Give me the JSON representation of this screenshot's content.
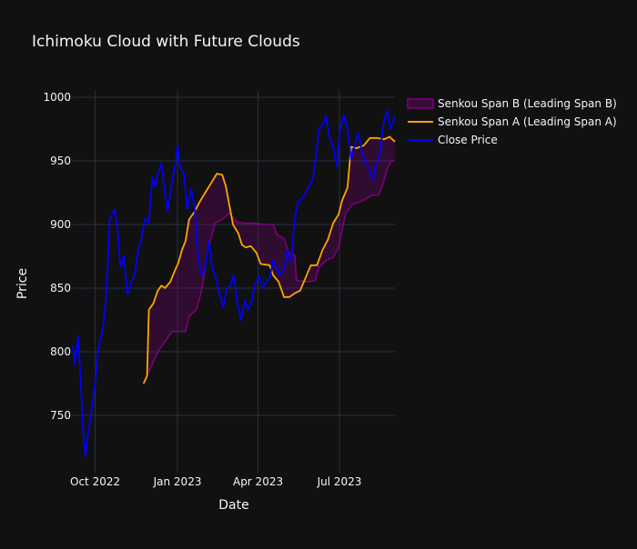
{
  "chart_data": {
    "type": "line",
    "title": "Ichimoku Cloud with Future Clouds",
    "xlabel": "Date",
    "ylabel": "Price",
    "xlim": [
      "2022-09-06",
      "2023-09-01"
    ],
    "ylim": [
      705,
      1005
    ],
    "x_ticks": [
      {
        "label": "Oct 2022",
        "date": "2022-10-01"
      },
      {
        "label": "Jan 2023",
        "date": "2023-01-01"
      },
      {
        "label": "Apr 2023",
        "date": "2023-04-01"
      },
      {
        "label": "Jul 2023",
        "date": "2023-07-01"
      }
    ],
    "y_ticks": [
      750,
      800,
      850,
      900,
      950,
      1000
    ],
    "grid": true,
    "legend": "top-right",
    "series": [
      {
        "name": "Senkou Span B (Leading Span B)",
        "color": "#800080",
        "fill": "tonexty",
        "points": [
          [
            "2022-11-24",
            775
          ],
          [
            "2022-12-10",
            800
          ],
          [
            "2022-12-26",
            816
          ],
          [
            "2023-01-10",
            816
          ],
          [
            "2023-01-14",
            828
          ],
          [
            "2023-01-22",
            833
          ],
          [
            "2023-01-28",
            848
          ],
          [
            "2023-02-04",
            880
          ],
          [
            "2023-02-12",
            901
          ],
          [
            "2023-02-22",
            905
          ],
          [
            "2023-02-28",
            909
          ],
          [
            "2023-03-08",
            902
          ],
          [
            "2023-03-18",
            901
          ],
          [
            "2023-03-28",
            901
          ],
          [
            "2023-04-08",
            900
          ],
          [
            "2023-04-18",
            900
          ],
          [
            "2023-04-22",
            892
          ],
          [
            "2023-04-30",
            889
          ],
          [
            "2023-05-06",
            877
          ],
          [
            "2023-05-12",
            876
          ],
          [
            "2023-05-14",
            856
          ],
          [
            "2023-05-26",
            855
          ],
          [
            "2023-06-04",
            856
          ],
          [
            "2023-06-08",
            866
          ],
          [
            "2023-06-16",
            872
          ],
          [
            "2023-06-24",
            874
          ],
          [
            "2023-06-30",
            882
          ],
          [
            "2023-07-08",
            909
          ],
          [
            "2023-07-16",
            916
          ],
          [
            "2023-07-28",
            919
          ],
          [
            "2023-08-06",
            923
          ],
          [
            "2023-08-14",
            923
          ],
          [
            "2023-08-20",
            935
          ],
          [
            "2023-08-24",
            945
          ],
          [
            "2023-08-28",
            950
          ],
          [
            "2023-09-01",
            950
          ]
        ]
      },
      {
        "name": "Senkou Span A (Leading Span A)",
        "color": "#FFA500",
        "points": [
          [
            "2022-11-24",
            775
          ],
          [
            "2022-11-28",
            781
          ],
          [
            "2022-11-30",
            833
          ],
          [
            "2022-12-05",
            838
          ],
          [
            "2022-12-10",
            848
          ],
          [
            "2022-12-14",
            852
          ],
          [
            "2022-12-18",
            850
          ],
          [
            "2022-12-24",
            855
          ],
          [
            "2022-12-28",
            862
          ],
          [
            "2023-01-02",
            870
          ],
          [
            "2023-01-06",
            880
          ],
          [
            "2023-01-10",
            887
          ],
          [
            "2023-01-14",
            904
          ],
          [
            "2023-01-20",
            910
          ],
          [
            "2023-01-26",
            918
          ],
          [
            "2023-02-01",
            925
          ],
          [
            "2023-02-08",
            933
          ],
          [
            "2023-02-14",
            940
          ],
          [
            "2023-02-20",
            939
          ],
          [
            "2023-02-24",
            930
          ],
          [
            "2023-02-28",
            915
          ],
          [
            "2023-03-04",
            900
          ],
          [
            "2023-03-10",
            893
          ],
          [
            "2023-03-14",
            884
          ],
          [
            "2023-03-18",
            882
          ],
          [
            "2023-03-24",
            883
          ],
          [
            "2023-03-30",
            878
          ],
          [
            "2023-04-04",
            869
          ],
          [
            "2023-04-14",
            868
          ],
          [
            "2023-04-18",
            860
          ],
          [
            "2023-04-24",
            855
          ],
          [
            "2023-04-30",
            843
          ],
          [
            "2023-05-06",
            843
          ],
          [
            "2023-05-12",
            846
          ],
          [
            "2023-05-18",
            848
          ],
          [
            "2023-05-24",
            858
          ],
          [
            "2023-05-30",
            868
          ],
          [
            "2023-06-06",
            868
          ],
          [
            "2023-06-12",
            880
          ],
          [
            "2023-06-18",
            888
          ],
          [
            "2023-06-24",
            901
          ],
          [
            "2023-06-30",
            908
          ],
          [
            "2023-07-04",
            919
          ],
          [
            "2023-07-10",
            929
          ],
          [
            "2023-07-14",
            961
          ],
          [
            "2023-07-20",
            960
          ],
          [
            "2023-07-28",
            962
          ],
          [
            "2023-08-04",
            968
          ],
          [
            "2023-08-12",
            968
          ],
          [
            "2023-08-20",
            967
          ],
          [
            "2023-08-26",
            969
          ],
          [
            "2023-09-01",
            965
          ]
        ]
      },
      {
        "name": "Close Price",
        "color": "#0000FF",
        "points": [
          [
            "2022-09-06",
            805
          ],
          [
            "2022-09-08",
            790
          ],
          [
            "2022-09-10",
            800
          ],
          [
            "2022-09-12",
            812
          ],
          [
            "2022-09-14",
            787
          ],
          [
            "2022-09-16",
            760
          ],
          [
            "2022-09-18",
            733
          ],
          [
            "2022-09-20",
            718
          ],
          [
            "2022-09-22",
            730
          ],
          [
            "2022-09-25",
            745
          ],
          [
            "2022-09-28",
            760
          ],
          [
            "2022-10-01",
            775
          ],
          [
            "2022-10-04",
            800
          ],
          [
            "2022-10-07",
            810
          ],
          [
            "2022-10-10",
            820
          ],
          [
            "2022-10-13",
            842
          ],
          [
            "2022-10-15",
            865
          ],
          [
            "2022-10-17",
            903
          ],
          [
            "2022-10-20",
            908
          ],
          [
            "2022-10-23",
            912
          ],
          [
            "2022-10-26",
            895
          ],
          [
            "2022-10-29",
            867
          ],
          [
            "2022-11-02",
            875
          ],
          [
            "2022-11-06",
            845
          ],
          [
            "2022-11-10",
            854
          ],
          [
            "2022-11-14",
            860
          ],
          [
            "2022-11-18",
            880
          ],
          [
            "2022-11-22",
            890
          ],
          [
            "2022-11-26",
            905
          ],
          [
            "2022-11-30",
            902
          ],
          [
            "2022-12-04",
            937
          ],
          [
            "2022-12-07",
            930
          ],
          [
            "2022-12-10",
            940
          ],
          [
            "2022-12-14",
            948
          ],
          [
            "2022-12-18",
            925
          ],
          [
            "2022-12-21",
            910
          ],
          [
            "2022-12-25",
            930
          ],
          [
            "2022-12-29",
            945
          ],
          [
            "2023-01-01",
            962
          ],
          [
            "2023-01-04",
            945
          ],
          [
            "2023-01-08",
            940
          ],
          [
            "2023-01-12",
            912
          ],
          [
            "2023-01-16",
            928
          ],
          [
            "2023-01-20",
            915
          ],
          [
            "2023-01-24",
            875
          ],
          [
            "2023-01-28",
            860
          ],
          [
            "2023-02-01",
            865
          ],
          [
            "2023-02-05",
            887
          ],
          [
            "2023-02-09",
            865
          ],
          [
            "2023-02-13",
            858
          ],
          [
            "2023-02-17",
            845
          ],
          [
            "2023-02-21",
            835
          ],
          [
            "2023-02-25",
            850
          ],
          [
            "2023-03-01",
            852
          ],
          [
            "2023-03-05",
            860
          ],
          [
            "2023-03-09",
            838
          ],
          [
            "2023-03-13",
            825
          ],
          [
            "2023-03-17",
            840
          ],
          [
            "2023-03-21",
            833
          ],
          [
            "2023-03-25",
            840
          ],
          [
            "2023-03-29",
            853
          ],
          [
            "2023-04-02",
            860
          ],
          [
            "2023-04-06",
            850
          ],
          [
            "2023-04-10",
            855
          ],
          [
            "2023-04-14",
            858
          ],
          [
            "2023-04-18",
            872
          ],
          [
            "2023-04-22",
            865
          ],
          [
            "2023-04-26",
            860
          ],
          [
            "2023-04-30",
            866
          ],
          [
            "2023-05-04",
            880
          ],
          [
            "2023-05-08",
            870
          ],
          [
            "2023-05-12",
            905
          ],
          [
            "2023-05-16",
            918
          ],
          [
            "2023-05-20",
            920
          ],
          [
            "2023-05-24",
            925
          ],
          [
            "2023-05-28",
            930
          ],
          [
            "2023-06-01",
            935
          ],
          [
            "2023-06-05",
            955
          ],
          [
            "2023-06-08",
            975
          ],
          [
            "2023-06-12",
            978
          ],
          [
            "2023-06-16",
            985
          ],
          [
            "2023-06-20",
            968
          ],
          [
            "2023-06-24",
            962
          ],
          [
            "2023-06-28",
            945
          ],
          [
            "2023-07-02",
            975
          ],
          [
            "2023-07-06",
            986
          ],
          [
            "2023-07-10",
            975
          ],
          [
            "2023-07-14",
            951
          ],
          [
            "2023-07-18",
            962
          ],
          [
            "2023-07-22",
            972
          ],
          [
            "2023-07-26",
            958
          ],
          [
            "2023-07-30",
            948
          ],
          [
            "2023-08-03",
            945
          ],
          [
            "2023-08-07",
            935
          ],
          [
            "2023-08-11",
            947
          ],
          [
            "2023-08-15",
            955
          ],
          [
            "2023-08-19",
            978
          ],
          [
            "2023-08-23",
            990
          ],
          [
            "2023-08-27",
            975
          ],
          [
            "2023-09-01",
            985
          ]
        ]
      }
    ]
  }
}
